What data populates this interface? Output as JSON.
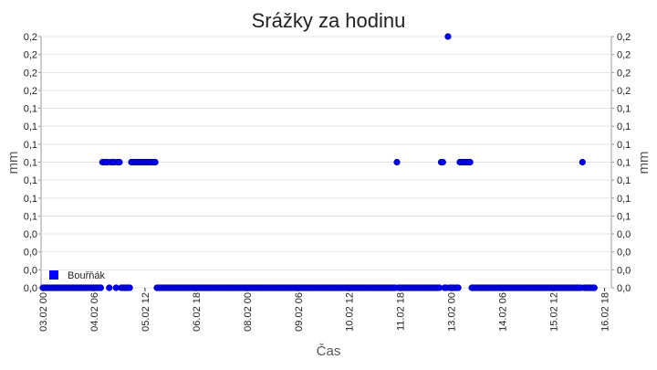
{
  "chart_data": {
    "type": "scatter",
    "title": "Srážky za hodinu",
    "xlabel": "Čas",
    "ylabel": "mm",
    "y2label": "mm",
    "categories": [
      "03.02 00",
      null,
      null,
      null,
      null,
      null,
      null,
      null,
      null,
      null,
      null,
      null,
      null,
      null,
      null,
      null,
      null,
      null,
      null,
      null,
      null,
      null,
      null,
      null,
      null,
      null,
      null,
      null,
      null,
      null,
      "04.02 06",
      null,
      null,
      null,
      null,
      null,
      null,
      null,
      null,
      null,
      null,
      null,
      null,
      null,
      null,
      null,
      null,
      null,
      null,
      null,
      null,
      null,
      null,
      null,
      null,
      null,
      null,
      null,
      null,
      null,
      "05.02 12",
      null,
      null,
      null,
      null,
      null,
      null,
      null,
      null,
      null,
      null,
      null,
      null,
      null,
      null,
      null,
      null,
      null,
      null,
      null,
      null,
      null,
      null,
      null,
      null,
      null,
      null,
      null,
      null,
      null,
      "06.02 18",
      null,
      null,
      null,
      null,
      null,
      null,
      null,
      null,
      null,
      null,
      null,
      null,
      null,
      null,
      null,
      null,
      null,
      null,
      null,
      null,
      null,
      null,
      null,
      null,
      null,
      null,
      null,
      null,
      null,
      "08.02 00",
      null,
      null,
      null,
      null,
      null,
      null,
      null,
      null,
      null,
      null,
      null,
      null,
      null,
      null,
      null,
      null,
      null,
      null,
      null,
      null,
      null,
      null,
      null,
      null,
      null,
      null,
      null,
      null,
      null,
      "09.02 06",
      null,
      null,
      null,
      null,
      null,
      null,
      null,
      null,
      null,
      null,
      null,
      null,
      null,
      null,
      null,
      null,
      null,
      null,
      null,
      null,
      null,
      null,
      null,
      null,
      null,
      null,
      null,
      null,
      null,
      "10.02 12",
      null,
      null,
      null,
      null,
      null,
      null,
      null,
      null,
      null,
      null,
      null,
      null,
      null,
      null,
      null,
      null,
      null,
      null,
      null,
      null,
      null,
      null,
      null,
      null,
      null,
      null,
      null,
      null,
      null,
      "11.02 18",
      null,
      null,
      null,
      null,
      null,
      null,
      null,
      null,
      null,
      null,
      null,
      null,
      null,
      null,
      null,
      null,
      null,
      null,
      null,
      null,
      null,
      null,
      null,
      null,
      null,
      null,
      null,
      null,
      null,
      "13.02 00",
      null,
      null,
      null,
      null,
      null,
      null,
      null,
      null,
      null,
      null,
      null,
      null,
      null,
      null,
      null,
      null,
      null,
      null,
      null,
      null,
      null,
      null,
      null,
      null,
      null,
      null,
      null,
      null,
      null,
      "14.02 06",
      null,
      null,
      null,
      null,
      null,
      null,
      null,
      null,
      null,
      null,
      null,
      null,
      null,
      null,
      null,
      null,
      null,
      null,
      null,
      null,
      null,
      null,
      null,
      null,
      null,
      null,
      null,
      null,
      null,
      "15.02 12",
      null,
      null,
      null,
      null,
      null,
      null,
      null,
      null,
      null,
      null,
      null,
      null,
      null,
      null,
      null,
      null,
      null,
      null,
      null,
      null,
      null,
      null,
      null,
      null,
      null,
      null,
      null,
      null,
      null,
      "16.02 18",
      null,
      null,
      null,
      null
    ],
    "series": [
      {
        "name": "Bouřňák",
        "color": "#0000ff",
        "values": [
          0,
          0,
          0,
          0,
          0,
          0,
          0,
          0,
          0,
          0,
          0,
          0,
          0,
          0,
          0,
          0,
          0,
          0,
          0,
          0,
          0,
          0,
          0,
          0,
          0,
          0,
          0,
          0,
          0,
          0,
          0,
          0,
          0,
          0,
          0,
          0.1,
          0.1,
          0.1,
          0.1,
          0,
          0.1,
          0.1,
          0.1,
          0,
          0.1,
          0.1,
          0,
          0,
          0,
          0,
          0,
          0,
          0.1,
          0.1,
          0.1,
          0.1,
          0.1,
          0.1,
          0.1,
          0.1,
          0.1,
          0.1,
          0.1,
          0.1,
          0.1,
          0.1,
          0.1,
          0,
          0,
          0,
          0,
          0,
          0,
          0,
          0,
          0,
          0,
          0,
          0,
          0,
          0,
          0,
          0,
          0,
          0,
          0,
          0,
          0,
          0,
          0,
          0,
          0,
          0,
          0,
          0,
          0,
          0,
          0,
          0,
          0,
          0,
          0,
          0,
          0,
          0,
          0,
          0,
          0,
          0,
          0,
          0,
          0,
          0,
          0,
          0,
          0,
          0,
          0,
          0,
          0,
          0,
          0,
          0,
          0,
          0,
          0,
          0,
          0,
          0,
          0,
          0,
          0,
          0,
          0,
          0,
          0,
          0,
          0,
          0,
          0,
          0,
          0,
          0,
          0,
          0,
          0,
          0,
          0,
          0,
          0,
          0,
          0,
          0,
          0,
          0,
          0,
          0,
          0,
          0,
          0,
          0,
          0,
          0,
          0,
          0,
          0,
          0,
          0,
          0,
          0,
          0,
          0,
          0,
          0,
          0,
          0,
          0,
          0,
          0,
          0,
          0,
          0,
          0,
          0,
          0,
          0,
          0,
          0,
          0,
          0,
          0,
          0,
          0,
          0,
          0,
          0,
          0,
          0,
          0,
          0,
          0,
          0,
          0,
          0,
          0,
          0,
          0,
          0,
          0.1,
          0,
          0,
          0,
          0,
          0,
          0,
          0,
          0,
          0,
          0,
          0,
          0,
          0,
          0,
          0,
          0,
          0,
          0,
          0,
          0,
          0,
          0,
          0,
          0,
          0,
          0.1,
          0.1,
          0,
          0,
          0.2,
          0,
          0,
          0,
          0,
          0,
          0,
          0.1,
          0.1,
          0.1,
          0.1,
          0.1,
          0.1,
          0.1,
          0,
          0,
          0,
          0,
          0,
          0,
          0,
          0,
          0,
          0,
          0,
          0,
          0,
          0,
          0,
          0,
          0,
          0,
          0,
          0,
          0,
          0,
          0,
          0,
          0,
          0,
          0,
          0,
          0,
          0,
          0,
          0,
          0,
          0,
          0,
          0,
          0,
          0,
          0,
          0,
          0,
          0,
          0,
          0,
          0,
          0,
          0,
          0,
          0,
          0,
          0,
          0,
          0,
          0,
          0,
          0,
          0,
          0,
          0,
          0,
          0,
          0,
          0,
          0,
          0,
          0.1,
          0,
          0,
          0,
          0,
          0,
          0,
          0
        ]
      }
    ],
    "ylim": [
      0,
      0.2
    ],
    "yticks": [
      {
        "value": 0,
        "label": "0,0"
      },
      {
        "value": 0.0143,
        "label": "0,0"
      },
      {
        "value": 0.0286,
        "label": "0,0"
      },
      {
        "value": 0.0429,
        "label": "0,0"
      },
      {
        "value": 0.0571,
        "label": "0,1"
      },
      {
        "value": 0.0714,
        "label": "0,1"
      },
      {
        "value": 0.0857,
        "label": "0,1"
      },
      {
        "value": 0.1,
        "label": "0,1"
      },
      {
        "value": 0.1143,
        "label": "0,1"
      },
      {
        "value": 0.1286,
        "label": "0,1"
      },
      {
        "value": 0.1429,
        "label": "0,1"
      },
      {
        "value": 0.1571,
        "label": "0,2"
      },
      {
        "value": 0.1714,
        "label": "0,2"
      },
      {
        "value": 0.1857,
        "label": "0,2"
      },
      {
        "value": 0.2,
        "label": "0,2"
      }
    ],
    "grid": true,
    "legend": "lower left"
  }
}
